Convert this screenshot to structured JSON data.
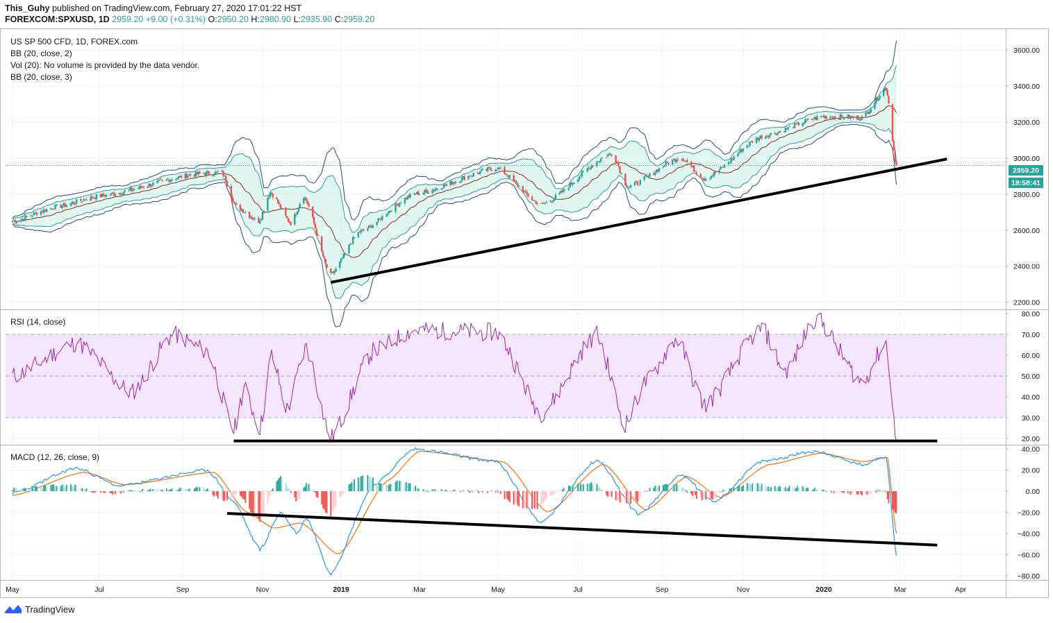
{
  "header": {
    "author": "This_Guhy",
    "published_text": "published on TradingView.com, February 27, 2020 17:01:22 HST",
    "symbol": "FOREXCOM:SPXUSD, 1D",
    "last": "2959.20",
    "change": "+9.00 (+0.31%)",
    "open_label": "O:",
    "open": "2950.20",
    "high_label": "H:",
    "high": "2980.90",
    "low_label": "L:",
    "low": "2935.90",
    "close_label": "C:",
    "close": "2959.20"
  },
  "legend": {
    "title": "US SP 500 CFD, 1D, FOREX.com",
    "bb2": "BB (20, close, 2)",
    "vol": "Vol (20): No volume is provided by the data vendor.",
    "bb3": "BB (20, close, 3)",
    "rsi": "RSI (14, close)",
    "macd": "MACD (12, 26, close, 9)"
  },
  "price_badge": {
    "value": "2959.20",
    "countdown": "18:58:41"
  },
  "footer": {
    "brand": "TradingView"
  },
  "colors": {
    "up": "#26a69a",
    "down": "#ef5350",
    "bb_outer": "#1e4a8a",
    "bb_inner": "#2a9d8f",
    "bb_fill": "#c8ece6",
    "basis": "#8b2b1e",
    "rsi": "#9c27b0",
    "rsi_band": "#f3e5fb",
    "macd": "#2196f3",
    "signal": "#ff6d00"
  },
  "chart_data": [
    {
      "type": "candlestick",
      "title": "US SP 500 CFD, 1D, FOREX.com",
      "x_tick_labels": [
        "May",
        "Jul",
        "Sep",
        "Nov",
        "2019",
        "Mar",
        "May",
        "Jul",
        "Sep",
        "Nov",
        "2020",
        "Mar",
        "Apr"
      ],
      "y_tick_labels": [
        "3600.00",
        "3400.00",
        "3200.00",
        "3000.00",
        "2800.00",
        "2600.00",
        "2400.00",
        "2200.00"
      ],
      "ylim": [
        2160,
        3720
      ],
      "close_path": [
        {
          "date": "2018-05-01",
          "value": 2650
        },
        {
          "date": "2018-06-01",
          "value": 2730
        },
        {
          "date": "2018-07-01",
          "value": 2790
        },
        {
          "date": "2018-09-15",
          "value": 2915
        },
        {
          "date": "2018-10-01",
          "value": 2920
        },
        {
          "date": "2018-10-12",
          "value": 2730
        },
        {
          "date": "2018-10-29",
          "value": 2650
        },
        {
          "date": "2018-11-07",
          "value": 2810
        },
        {
          "date": "2018-11-23",
          "value": 2640
        },
        {
          "date": "2018-12-03",
          "value": 2790
        },
        {
          "date": "2018-12-24",
          "value": 2350
        },
        {
          "date": "2019-01-15",
          "value": 2590
        },
        {
          "date": "2019-02-25",
          "value": 2800
        },
        {
          "date": "2019-04-30",
          "value": 2945
        },
        {
          "date": "2019-06-03",
          "value": 2740
        },
        {
          "date": "2019-07-26",
          "value": 3025
        },
        {
          "date": "2019-08-07",
          "value": 2840
        },
        {
          "date": "2019-09-15",
          "value": 3005
        },
        {
          "date": "2019-10-03",
          "value": 2885
        },
        {
          "date": "2019-11-15",
          "value": 3120
        },
        {
          "date": "2019-12-31",
          "value": 3230
        },
        {
          "date": "2020-01-31",
          "value": 3225
        },
        {
          "date": "2020-02-19",
          "value": 3390
        },
        {
          "date": "2020-02-27",
          "value": 2959.2
        }
      ],
      "last": 2959.2,
      "bollinger": [
        "BB (20, close, 2)",
        "BB (20, close, 3)"
      ],
      "trendline": [
        {
          "date": "2018-12-24",
          "value": 2310
        },
        {
          "date": "2020-03-25",
          "value": 2995
        }
      ]
    },
    {
      "type": "line",
      "title": "RSI (14, close)",
      "y_tick_labels": [
        "80.00",
        "70.00",
        "60.00",
        "50.00",
        "40.00",
        "30.00",
        "20.00"
      ],
      "ylim": [
        17,
        82
      ],
      "band": [
        30,
        70
      ],
      "series": [
        {
          "values": [
            {
              "date": "2018-05-01",
              "value": 50
            },
            {
              "date": "2018-06-15",
              "value": 66
            },
            {
              "date": "2018-07-25",
              "value": 42
            },
            {
              "date": "2018-08-25",
              "value": 70
            },
            {
              "date": "2018-09-20",
              "value": 62
            },
            {
              "date": "2018-10-10",
              "value": 24
            },
            {
              "date": "2018-10-18",
              "value": 44
            },
            {
              "date": "2018-10-30",
              "value": 25
            },
            {
              "date": "2018-11-08",
              "value": 60
            },
            {
              "date": "2018-11-20",
              "value": 34
            },
            {
              "date": "2018-12-05",
              "value": 64
            },
            {
              "date": "2018-12-24",
              "value": 20
            },
            {
              "date": "2019-01-25",
              "value": 62
            },
            {
              "date": "2019-02-25",
              "value": 72
            },
            {
              "date": "2019-04-30",
              "value": 71
            },
            {
              "date": "2019-06-03",
              "value": 32
            },
            {
              "date": "2019-07-15",
              "value": 70
            },
            {
              "date": "2019-08-05",
              "value": 27
            },
            {
              "date": "2019-08-20",
              "value": 47
            },
            {
              "date": "2019-09-12",
              "value": 68
            },
            {
              "date": "2019-10-03",
              "value": 36
            },
            {
              "date": "2019-11-15",
              "value": 73
            },
            {
              "date": "2019-12-03",
              "value": 52
            },
            {
              "date": "2019-12-26",
              "value": 78
            },
            {
              "date": "2020-01-31",
              "value": 47
            },
            {
              "date": "2020-02-19",
              "value": 66
            },
            {
              "date": "2020-02-27",
              "value": 19
            }
          ]
        }
      ],
      "trendline": [
        {
          "date": "2018-10-10",
          "value": 18.8
        },
        {
          "date": "2020-03-20",
          "value": 18.8
        }
      ]
    },
    {
      "type": "line",
      "title": "MACD (12, 26, close, 9)",
      "y_tick_labels": [
        "40.00",
        "20.00",
        "0.00",
        "−20.00",
        "−40.00",
        "−60.00",
        "−80.00"
      ],
      "ylim": [
        -84,
        44
      ],
      "series": [
        {
          "values": [
            {
              "date": "2018-05-01",
              "value": -2
            },
            {
              "date": "2018-06-15",
              "value": 22
            },
            {
              "date": "2018-07-15",
              "value": 5
            },
            {
              "date": "2018-09-20",
              "value": 20
            },
            {
              "date": "2018-10-10",
              "value": -10
            },
            {
              "date": "2018-10-30",
              "value": -55
            },
            {
              "date": "2018-11-15",
              "value": -20
            },
            {
              "date": "2018-11-28",
              "value": -40
            },
            {
              "date": "2018-12-05",
              "value": -25
            },
            {
              "date": "2018-12-24",
              "value": -78
            },
            {
              "date": "2019-01-25",
              "value": 5
            },
            {
              "date": "2019-02-25",
              "value": 40
            },
            {
              "date": "2019-04-30",
              "value": 28
            },
            {
              "date": "2019-06-03",
              "value": -30
            },
            {
              "date": "2019-07-15",
              "value": 30
            },
            {
              "date": "2019-08-15",
              "value": -22
            },
            {
              "date": "2019-09-15",
              "value": 16
            },
            {
              "date": "2019-10-10",
              "value": -10
            },
            {
              "date": "2019-11-15",
              "value": 28
            },
            {
              "date": "2019-12-26",
              "value": 38
            },
            {
              "date": "2020-01-31",
              "value": 25
            },
            {
              "date": "2020-02-19",
              "value": 33
            },
            {
              "date": "2020-02-27",
              "value": -60
            }
          ]
        },
        {
          "values": [
            {
              "date": "2018-05-01",
              "value": -4
            },
            {
              "date": "2018-06-20",
              "value": 18
            },
            {
              "date": "2018-07-20",
              "value": 6
            },
            {
              "date": "2018-09-25",
              "value": 18
            },
            {
              "date": "2018-10-20",
              "value": -20
            },
            {
              "date": "2018-11-10",
              "value": -35
            },
            {
              "date": "2018-12-01",
              "value": -30
            },
            {
              "date": "2018-12-30",
              "value": -60
            },
            {
              "date": "2019-02-05",
              "value": 10
            },
            {
              "date": "2019-03-01",
              "value": 38
            },
            {
              "date": "2019-05-05",
              "value": 28
            },
            {
              "date": "2019-06-08",
              "value": -20
            },
            {
              "date": "2019-07-20",
              "value": 26
            },
            {
              "date": "2019-08-20",
              "value": -18
            },
            {
              "date": "2019-09-20",
              "value": 14
            },
            {
              "date": "2019-10-15",
              "value": -6
            },
            {
              "date": "2019-11-20",
              "value": 25
            },
            {
              "date": "2019-12-30",
              "value": 36
            },
            {
              "date": "2020-02-01",
              "value": 28
            },
            {
              "date": "2020-02-20",
              "value": 32
            },
            {
              "date": "2020-02-27",
              "value": -40
            }
          ]
        }
      ],
      "trendline": [
        {
          "date": "2018-10-05",
          "value": -21
        },
        {
          "date": "2020-03-20",
          "value": -51
        }
      ]
    }
  ]
}
